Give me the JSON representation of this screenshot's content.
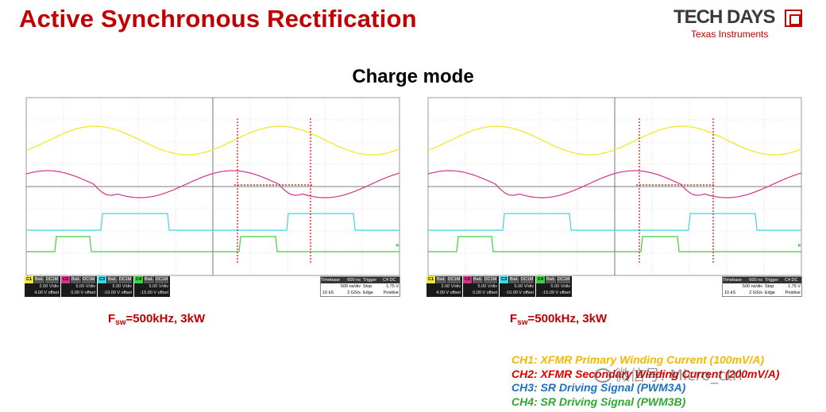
{
  "slide": {
    "title": "Active Synchronous Rectification",
    "subtitle": "Charge mode"
  },
  "logo": {
    "main": "TECH DAYS",
    "sub": "Texas Instruments"
  },
  "scopes": [
    {
      "channels": [
        {
          "tag": "C1",
          "mode": "BwL",
          "coupling": "DC1M",
          "scale": "2.00 V/div",
          "offset": "4.00 V offset",
          "color": "#f2ea3a"
        },
        {
          "tag": "C2",
          "mode": "BwL",
          "coupling": "DC1M",
          "scale": "5.00 V/div",
          "offset": "0.00 V offset",
          "color": "#d6338f"
        },
        {
          "tag": "C3",
          "mode": "BwL",
          "coupling": "DC1M",
          "scale": "5.00 V/div",
          "offset": "-10.00 V offset",
          "color": "#3ed6e6"
        },
        {
          "tag": "C4",
          "mode": "BwL",
          "coupling": "DC1M",
          "scale": "5.00 V/div",
          "offset": "-15.00 V offset",
          "color": "#3fd13f"
        }
      ],
      "timebase": {
        "label": "Timebase",
        "value": "-500 ns",
        "div": "500 ns/div",
        "samples": "10 kS",
        "rate": "2 GS/s"
      },
      "trigger": {
        "label": "Trigger",
        "code": "C4 DC",
        "mode": "Stop",
        "level": "1.75 V",
        "type": "Edge",
        "slope": "Positive"
      }
    },
    {
      "channels": [
        {
          "tag": "C1",
          "mode": "BwL",
          "coupling": "DC1M",
          "scale": "2.00 V/div",
          "offset": "4.00 V offset",
          "color": "#f2ea3a"
        },
        {
          "tag": "C2",
          "mode": "BwL",
          "coupling": "DC1M",
          "scale": "5.00 V/div",
          "offset": "0.00 V offset",
          "color": "#d6338f"
        },
        {
          "tag": "C3",
          "mode": "BwL",
          "coupling": "DC1M",
          "scale": "5.00 V/div",
          "offset": "-10.00 V offset",
          "color": "#3ed6e6"
        },
        {
          "tag": "C4",
          "mode": "BwL",
          "coupling": "DC1M",
          "scale": "5.00 V/div",
          "offset": "-15.00 V offset",
          "color": "#3fd13f"
        }
      ],
      "timebase": {
        "label": "Timebase",
        "value": "-500 ns",
        "div": "500 ns/div",
        "samples": "10 kS",
        "rate": "2 GS/s"
      },
      "trigger": {
        "label": "Trigger",
        "code": "C4 DC",
        "mode": "Stop",
        "level": "1.75 V",
        "type": "Edge",
        "slope": "Positive"
      }
    }
  ],
  "freq_labels": [
    {
      "f": "F",
      "sub": "sw",
      "rest": "=500kHz, 3kW"
    },
    {
      "f": "F",
      "sub": "sw",
      "rest": "=500kHz, 3kW"
    }
  ],
  "legend": [
    {
      "text": "CH1: XFMR Primary Winding Current  (100mV/A)",
      "color": "#f5b800"
    },
    {
      "text": "CH2: XFMR Secondary Winding Current (200mV/A)",
      "color": "#e00000"
    },
    {
      "text": "CH3: SR Driving Signal (PWM3A)",
      "color": "#1f6fc2"
    },
    {
      "text": "CH4: SR Driving Signal (PWM3B)",
      "color": "#2ea82e"
    }
  ],
  "watermark": "微信号: Micro_ctrl",
  "colors": {
    "title": "#c00000",
    "marker": "#e00000"
  }
}
